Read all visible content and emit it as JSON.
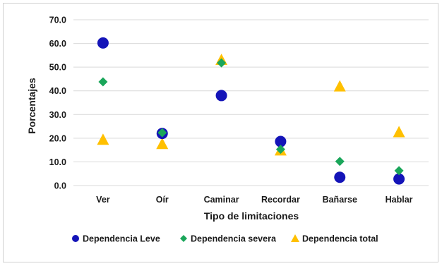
{
  "chart_data": {
    "type": "scatter",
    "title": "",
    "xlabel": "Tipo de limitaciones",
    "ylabel": "Porcentajes",
    "ylim": [
      0,
      70
    ],
    "yticks": [
      "0.0",
      "10.0",
      "20.0",
      "30.0",
      "40.0",
      "50.0",
      "60.0",
      "70.0"
    ],
    "categories": [
      "Ver",
      "Oír",
      "Caminar",
      "Recordar",
      "Bañarse",
      "Hablar"
    ],
    "grid": true,
    "legend_position": "bottom",
    "series": [
      {
        "name": "Dependencia Leve",
        "marker": "circle",
        "color": "#1414b8",
        "values": [
          60.2,
          22.0,
          38.0,
          18.6,
          3.5,
          2.8
        ]
      },
      {
        "name": "Dependencia severa",
        "marker": "diamond",
        "color": "#1aa65a",
        "values": [
          43.8,
          22.3,
          51.8,
          15.3,
          10.2,
          6.3
        ]
      },
      {
        "name": "Dependencia total",
        "marker": "triangle",
        "color": "#ffc000",
        "values": [
          19.3,
          17.5,
          53.0,
          14.8,
          41.8,
          22.5
        ]
      }
    ]
  }
}
